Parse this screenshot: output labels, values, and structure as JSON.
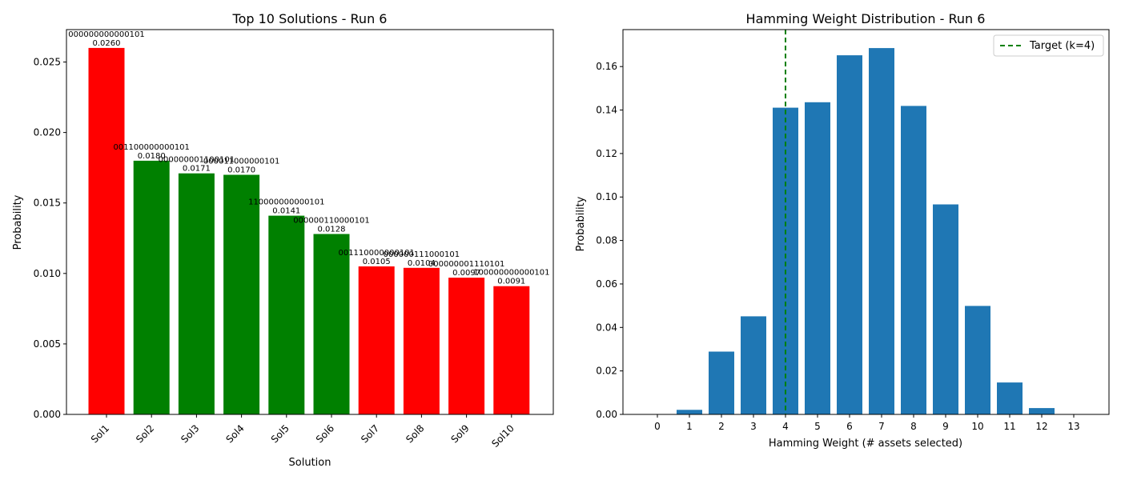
{
  "chart_data": [
    {
      "type": "bar",
      "title": "Top 10 Solutions - Run 6",
      "xlabel": "Solution",
      "ylabel": "Probability",
      "ylim": [
        0,
        0.0273
      ],
      "yticks": [
        "0.000",
        "0.005",
        "0.010",
        "0.015",
        "0.020",
        "0.025"
      ],
      "categories": [
        "Sol1",
        "Sol2",
        "Sol3",
        "Sol4",
        "Sol5",
        "Sol6",
        "Sol7",
        "Sol8",
        "Sol9",
        "Sol10"
      ],
      "values": [
        0.026,
        0.018,
        0.0171,
        0.017,
        0.0141,
        0.0128,
        0.0105,
        0.0104,
        0.0097,
        0.0091
      ],
      "value_labels": [
        "0.0260",
        "0.0180",
        "0.0171",
        "0.0170",
        "0.0141",
        "0.0128",
        "0.0105",
        "0.0104",
        "0.0097",
        "0.0091"
      ],
      "bitstrings": [
        "000000000000101",
        "001100000000101",
        "000000001100101",
        "000011000000101",
        "110000000000101",
        "000000110000101",
        "001110000000101",
        "000000111000101",
        "000000001110101",
        "100000000000101"
      ],
      "bar_colors": [
        "#ff0000",
        "#008000",
        "#008000",
        "#008000",
        "#008000",
        "#008000",
        "#ff0000",
        "#ff0000",
        "#ff0000",
        "#ff0000"
      ],
      "grid": false
    },
    {
      "type": "bar",
      "title": "Hamming Weight Distribution - Run 6",
      "xlabel": "Hamming Weight (# assets selected)",
      "ylabel": "Probability",
      "ylim": [
        0,
        0.177
      ],
      "yticks": [
        "0.00",
        "0.02",
        "0.04",
        "0.06",
        "0.08",
        "0.10",
        "0.12",
        "0.14",
        "0.16"
      ],
      "categories": [
        "0",
        "1",
        "2",
        "3",
        "4",
        "5",
        "6",
        "7",
        "8",
        "9",
        "10",
        "11",
        "12",
        "13"
      ],
      "values": [
        0.0,
        0.0021,
        0.0289,
        0.0451,
        0.1411,
        0.1436,
        0.1652,
        0.1685,
        0.1419,
        0.0966,
        0.0499,
        0.0147,
        0.0029,
        0.0
      ],
      "bar_color": "#1f77b4",
      "target_line": {
        "x": 4,
        "label": "Target (k=4)",
        "color": "#008000"
      },
      "legend_position": "top-right",
      "grid": false
    }
  ]
}
